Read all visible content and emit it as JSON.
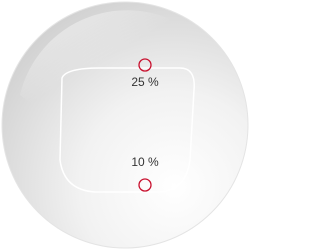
{
  "markers": [
    {
      "label": "25 %"
    },
    {
      "label": "10 %"
    }
  ]
}
